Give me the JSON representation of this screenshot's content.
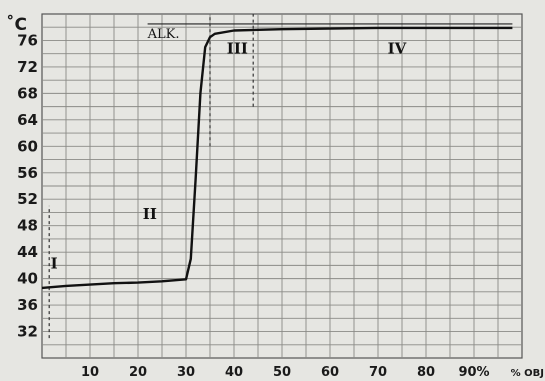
{
  "chart_data": {
    "type": "line",
    "ylabel": "˚C",
    "xlabel_unit": "% OBJ",
    "x_ticks": [
      {
        "value": 10,
        "label": "10"
      },
      {
        "value": 20,
        "label": "20"
      },
      {
        "value": 30,
        "label": "30"
      },
      {
        "value": 40,
        "label": "40"
      },
      {
        "value": 50,
        "label": "50"
      },
      {
        "value": 60,
        "label": "60"
      },
      {
        "value": 70,
        "label": "70"
      },
      {
        "value": 80,
        "label": "80"
      },
      {
        "value": 90,
        "label": "90%"
      }
    ],
    "y_ticks": [
      32,
      36,
      40,
      44,
      48,
      52,
      56,
      60,
      64,
      68,
      72,
      76
    ],
    "xlim": [
      0,
      100
    ],
    "ylim": [
      28,
      80
    ],
    "grid": true,
    "series": [
      {
        "points": [
          [
            0,
            38.6
          ],
          [
            5,
            38.9
          ],
          [
            10,
            39.1
          ],
          [
            15,
            39.3
          ],
          [
            20,
            39.4
          ],
          [
            25,
            39.6
          ],
          [
            30,
            39.9
          ],
          [
            31,
            43
          ],
          [
            32,
            55
          ],
          [
            33,
            68
          ],
          [
            34,
            75
          ],
          [
            35,
            76.5
          ],
          [
            36,
            77.0
          ],
          [
            40,
            77.5
          ],
          [
            50,
            77.7
          ],
          [
            60,
            77.8
          ],
          [
            70,
            77.9
          ],
          [
            80,
            77.9
          ],
          [
            90,
            77.9
          ],
          [
            98,
            77.9
          ]
        ]
      }
    ],
    "reference_lines": [
      {
        "label": "ALK.",
        "y": 78.5
      }
    ],
    "markers": [
      {
        "x": 35,
        "y_from": 60,
        "y_to": 80
      },
      {
        "x": 44,
        "y_from": 66,
        "y_to": 80
      },
      {
        "x": 1.5,
        "y_from": 31,
        "y_to": 51
      }
    ],
    "annotations": [
      {
        "text": "I",
        "x": 1.8,
        "y": 41.5
      },
      {
        "text": "II",
        "x": 21,
        "y": 49
      },
      {
        "text": "III",
        "x": 38.5,
        "y": 74
      },
      {
        "text": "IV",
        "x": 72,
        "y": 74
      }
    ]
  }
}
